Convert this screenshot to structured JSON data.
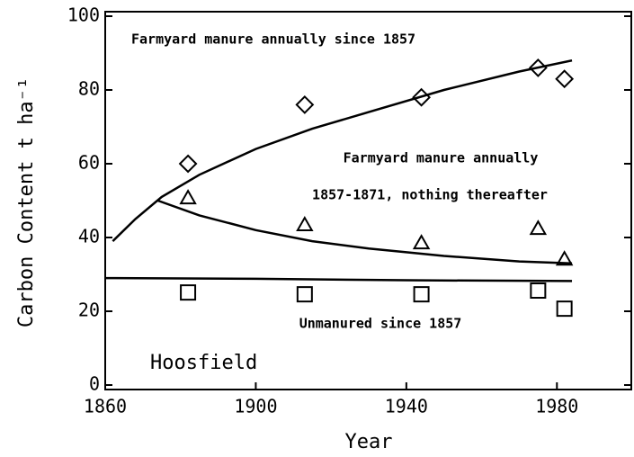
{
  "chart_data": {
    "type": "scatter",
    "xlabel": "Year",
    "ylabel": "Carbon Content t ha⁻¹",
    "xlim": [
      1860,
      2000
    ],
    "ylim": [
      0,
      100
    ],
    "xticks": [
      1860,
      1900,
      1940,
      1980
    ],
    "yticks": [
      0,
      20,
      40,
      60,
      80,
      100
    ],
    "color": "#000000",
    "series": [
      {
        "marker": "diamond",
        "x": [
          1882,
          1913,
          1944,
          1975,
          1982
        ],
        "values": [
          60,
          76,
          78,
          86,
          83
        ]
      },
      {
        "marker": "triangle",
        "x": [
          1882,
          1913,
          1944,
          1975,
          1982
        ],
        "values": [
          50.7,
          43.4,
          38.5,
          42.4,
          34.1
        ]
      },
      {
        "marker": "square",
        "x": [
          1882,
          1913,
          1944,
          1975,
          1982
        ],
        "values": [
          25.1,
          24.6,
          24.6,
          25.6,
          20.7
        ]
      }
    ],
    "curves": [
      {
        "x": [
          1862,
          1868,
          1875,
          1885,
          1900,
          1915,
          1930,
          1950,
          1970,
          1984
        ],
        "values": [
          39,
          45,
          51,
          57,
          64,
          69.5,
          74,
          80,
          85,
          88
        ]
      },
      {
        "x": [
          1874,
          1885,
          1900,
          1915,
          1930,
          1950,
          1970,
          1984
        ],
        "values": [
          50,
          46,
          42,
          39,
          37,
          35,
          33.5,
          33
        ]
      },
      {
        "x": [
          1860,
          1900,
          1940,
          1984
        ],
        "values": [
          29,
          28.8,
          28.4,
          28.2
        ]
      }
    ],
    "annotations": [
      "Farmyard manure annually since 1857",
      "Farmyard manure annually",
      "1857-1871, nothing thereafter",
      "Unmanured since 1857",
      "Hoosfield"
    ]
  }
}
